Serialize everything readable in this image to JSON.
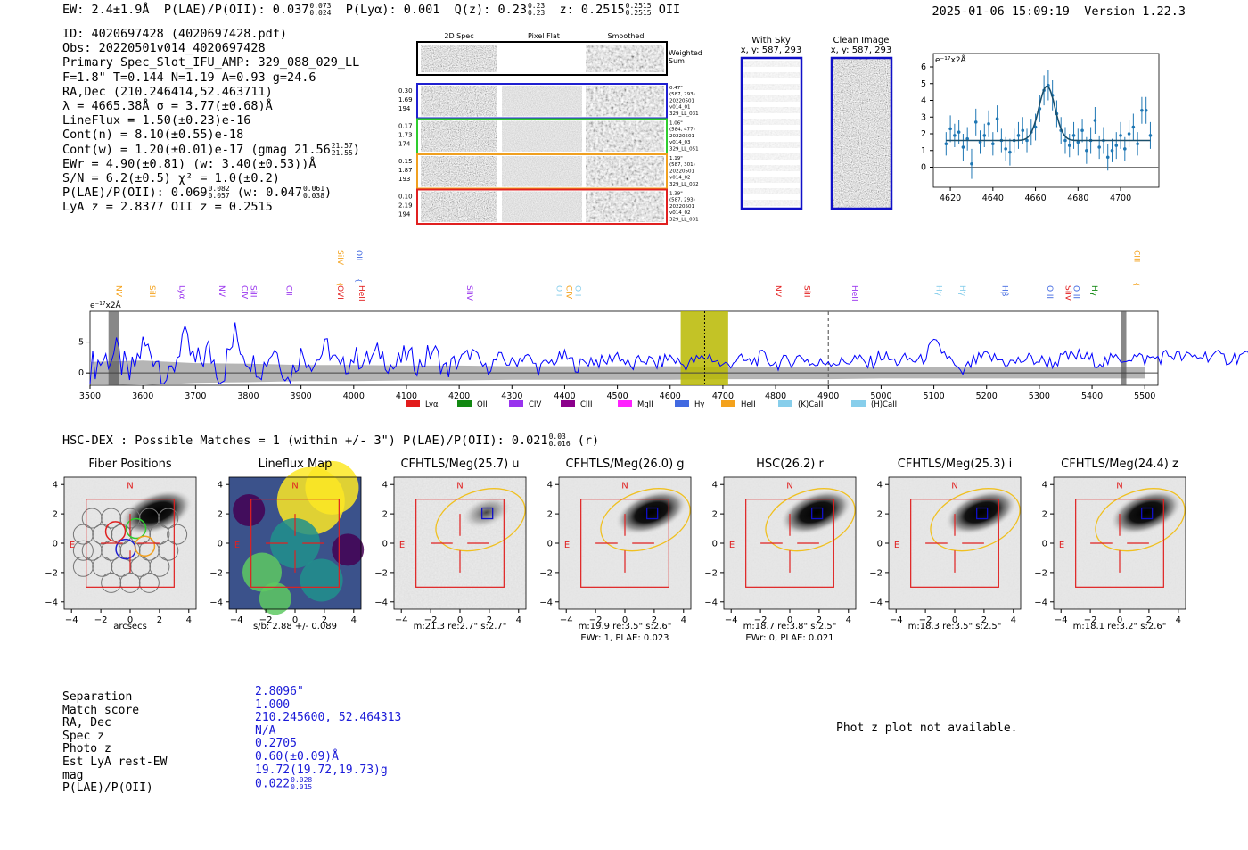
{
  "header": {
    "ew": "EW: 2.4±1.9Å",
    "plae_label": "P(LAE)/P(OII): 0.037",
    "plae_hi": "0.073",
    "plae_lo": "0.024",
    "plya": "P(Lyα): 0.001",
    "qz_label": "Q(z): 0.23",
    "qz_hi": "0.23",
    "qz_lo": "0.23",
    "z_label": "z: 0.2515",
    "z_hi": "0.2515",
    "z_lo": "0.2515",
    "z_line": "OII",
    "datetime": "2025-01-06 15:09:19",
    "version": "Version 1.22.3"
  },
  "details": {
    "id": "ID: 4020697428 (4020697428.pdf)",
    "obs": "Obs: 20220501v014_4020697428",
    "primary": "Primary Spec_Slot_IFU_AMP: 329_088_029_LL",
    "fiber": "F=1.8\"  T=0.144  N=1.19  A=0.93  g=24.6",
    "radec": "RA,Dec (210.246414,52.463711)",
    "lambda": "λ = 4665.38Å  σ = 3.77(±0.68)Å",
    "lineflux": "LineFlux = 1.50(±0.23)e-16",
    "contn": "Cont(n) = 8.10(±0.55)e-18",
    "contw": "Cont(w) = 1.20(±0.01)e-17 (gmag 21.56",
    "contw_hi": "21.57",
    "contw_lo": "21.55",
    "ewr": "EWr = 4.90(±0.81) (w: 3.40(±0.53))Å",
    "sn": "S/N = 6.2(±0.5)  χ² = 1.0(±0.2)",
    "plae": "P(LAE)/P(OII): 0.069",
    "plae_hi": "0.082",
    "plae_lo": "0.057",
    "plae_w": "(w: 0.047",
    "plae_w_hi": "0.061",
    "plae_w_lo": "0.038",
    "lya_oii": "LyA z = 2.8377  OII z = 0.2515"
  },
  "cutout_panel": {
    "col_2d": "2D Spec",
    "col_flat": "Pixel Flat",
    "col_smooth": "Smoothed",
    "weighted": "Weighted",
    "sum": "Sum",
    "rows": [
      {
        "left": [
          "0.30",
          "1.69",
          "194"
        ],
        "right": [
          "0.47\"",
          "(587, 293)",
          "20220501",
          "v014_01",
          "329_LL_031"
        ],
        "color": "#1f1fd0"
      },
      {
        "left": [
          "0.17",
          "1.73",
          "174"
        ],
        "right": [
          "1.06\"",
          "(584, 477)",
          "20220501",
          "v014_03",
          "329_LL_051"
        ],
        "color": "#2ecc2e"
      },
      {
        "left": [
          "0.15",
          "1.87",
          "193"
        ],
        "right": [
          "1.19\"",
          "(587, 301)",
          "20220501",
          "v014_02",
          "329_LL_032"
        ],
        "color": "#f0a020"
      },
      {
        "left": [
          "0.10",
          "2.19",
          "194"
        ],
        "right": [
          "1.39\"",
          "(587, 293)",
          "20220501",
          "v014_02",
          "329_LL_031"
        ],
        "color": "#e02020"
      }
    ]
  },
  "sky_panels": {
    "with_sky": "With Sky",
    "with_sky_xy": "x, y: 587, 293",
    "clean": "Clean Image",
    "clean_xy": "x, y: 587, 293"
  },
  "legend": [
    {
      "name": "Lyα",
      "color": "#e21b1b"
    },
    {
      "name": "OII",
      "color": "#118811"
    },
    {
      "name": "CIV",
      "color": "#9933ee"
    },
    {
      "name": "CIII",
      "color": "#8b008b"
    },
    {
      "name": "MgII",
      "color": "#ff22ff"
    },
    {
      "name": "Hγ",
      "color": "#4169e1"
    },
    {
      "name": "HeII",
      "color": "#f4a21c"
    },
    {
      "name": "(K)CaII",
      "color": "#87ceeb"
    },
    {
      "name": "(H)CaII",
      "color": "#87ceeb"
    }
  ],
  "line_markers": [
    {
      "label": "NV",
      "x": 3545,
      "row": 1,
      "color": "#f4a21c"
    },
    {
      "label": "SiII",
      "x": 3608,
      "row": 1,
      "color": "#f4a21c"
    },
    {
      "label": "Lyα",
      "x": 3665,
      "row": 1,
      "color": "#9933ee"
    },
    {
      "label": "NV",
      "x": 3740,
      "row": 1,
      "color": "#9933ee"
    },
    {
      "label": "CIV",
      "x": 3783,
      "row": 1,
      "color": "#9933ee"
    },
    {
      "label": "SiII",
      "x": 3800,
      "row": 1,
      "color": "#9933ee"
    },
    {
      "label": "CII",
      "x": 3868,
      "row": 1,
      "color": "#9933ee"
    },
    {
      "label": "SiIV",
      "x": 3965,
      "row": 0,
      "color": "#f4a21c"
    },
    {
      "label": "OII",
      "x": 4000,
      "row": 0,
      "color": "#4169e1"
    },
    {
      "label": "OVI",
      "x": 3965,
      "row": 1,
      "color": "#e21b1b"
    },
    {
      "label": "HeII",
      "x": 4005,
      "row": 1,
      "color": "#e21b1b"
    },
    {
      "label": "SiIV",
      "x": 4210,
      "row": 1,
      "color": "#9933ee"
    },
    {
      "label": "OII",
      "x": 4380,
      "row": 1,
      "color": "#87ceeb"
    },
    {
      "label": "CIV",
      "x": 4398,
      "row": 1,
      "color": "#f4a21c"
    },
    {
      "label": "OII",
      "x": 4415,
      "row": 1,
      "color": "#87ceeb"
    },
    {
      "label": "NV",
      "x": 4795,
      "row": 1,
      "color": "#e21b1b"
    },
    {
      "label": "SiII",
      "x": 4850,
      "row": 1,
      "color": "#e21b1b"
    },
    {
      "label": "HeII",
      "x": 4940,
      "row": 1,
      "color": "#9933ee"
    },
    {
      "label": "Hγ",
      "x": 5100,
      "row": 1,
      "color": "#87ceeb"
    },
    {
      "label": "Hγ",
      "x": 5145,
      "row": 1,
      "color": "#87ceeb"
    },
    {
      "label": "Hβ",
      "x": 5225,
      "row": 1,
      "color": "#4169e1"
    },
    {
      "label": "OIII",
      "x": 5310,
      "row": 1,
      "color": "#4169e1"
    },
    {
      "label": "SiIV",
      "x": 5345,
      "row": 1,
      "color": "#e21b1b"
    },
    {
      "label": "OIII",
      "x": 5360,
      "row": 1,
      "color": "#4169e1"
    },
    {
      "label": "Hγ",
      "x": 5395,
      "row": 1,
      "color": "#118811"
    },
    {
      "label": "CIII",
      "x": 5475,
      "row": 0,
      "color": "#f4a21c"
    }
  ],
  "hsc": {
    "text": "HSC-DEX : Possible Matches = 1 (within +/- 3\")  P(LAE)/P(OII): 0.021",
    "hi": "0.03",
    "lo": "0.016",
    "band": "(r)"
  },
  "thumbs": [
    {
      "title": "Fiber Positions",
      "foot1": "arcsecs",
      "foot2": "",
      "n": "N",
      "e": "E"
    },
    {
      "title": "Lineflux Map",
      "foot1": "s/b: 2.88 +/- 0.089",
      "foot2": "",
      "n": "N",
      "e": "E"
    },
    {
      "title": "CFHTLS/Meg(25.7) u",
      "foot1": "m:21.3  re:2.7\"  s:2.7\"",
      "foot2": "",
      "n": "N",
      "e": "E"
    },
    {
      "title": "CFHTLS/Meg(26.0) g",
      "foot1": "m:19.9  re:3.5\"  s:2.6\"",
      "foot2": "EWr: 1, PLAE: 0.023",
      "n": "N",
      "e": "E"
    },
    {
      "title": "HSC(26.2) r",
      "foot1": "m:18.7  re:3.8\"  s:2.5\"",
      "foot2": "EWr: 0, PLAE: 0.021",
      "n": "N",
      "e": "E"
    },
    {
      "title": "CFHTLS/Meg(25.3) i",
      "foot1": "m:18.3  re:3.5\"  s:2.5\"",
      "foot2": "",
      "n": "N",
      "e": "E"
    },
    {
      "title": "CFHTLS/Meg(24.4) z",
      "foot1": "m:18.1  re:3.2\"  s:2.6\"",
      "foot2": "",
      "n": "N",
      "e": "E"
    }
  ],
  "match": {
    "keys": [
      "Separation",
      "Match score",
      "RA, Dec",
      "Spec z",
      "Photo z",
      "Est LyA rest-EW",
      "mag",
      "P(LAE)/P(OII)"
    ],
    "values": [
      "2.8096\"",
      "1.000",
      "210.245600, 52.464313",
      "N/A",
      "0.2705",
      "0.60(±0.09)Å",
      "19.72(19.72,19.73)g",
      "0.022"
    ],
    "plae_hi": "0.028",
    "plae_lo": "0.015"
  },
  "photz_note": "Phot z plot not available.",
  "chart_data": [
    {
      "type": "scatter",
      "title": "line fit",
      "ylabel": "e⁻¹⁷x2Å",
      "xlim": [
        4612,
        4718
      ],
      "ylim": [
        -1.2,
        6.8
      ],
      "xticks": [
        4620,
        4640,
        4660,
        4680,
        4700
      ],
      "yticks": [
        0,
        1,
        2,
        3,
        4,
        5,
        6
      ],
      "x": [
        4618,
        4620,
        4622,
        4624,
        4626,
        4628,
        4630,
        4632,
        4634,
        4636,
        4638,
        4640,
        4642,
        4644,
        4646,
        4648,
        4650,
        4652,
        4654,
        4656,
        4658,
        4660,
        4662,
        4664,
        4666,
        4668,
        4670,
        4672,
        4674,
        4676,
        4678,
        4680,
        4682,
        4684,
        4686,
        4688,
        4690,
        4692,
        4694,
        4696,
        4698,
        4700,
        4702,
        4704,
        4706,
        4708,
        4710,
        4712,
        4714
      ],
      "y": [
        1.4,
        2.3,
        1.9,
        2.1,
        1.2,
        1.7,
        0.2,
        2.7,
        1.5,
        1.9,
        2.6,
        1.4,
        2.9,
        1.6,
        1.1,
        0.9,
        1.6,
        1.9,
        2.2,
        1.6,
        2.1,
        2.4,
        3.5,
        4.6,
        4.9,
        4.3,
        3.2,
        2.2,
        1.6,
        1.3,
        1.9,
        1.5,
        2.2,
        1.0,
        1.6,
        2.8,
        1.2,
        1.6,
        0.6,
        1.0,
        1.3,
        1.9,
        1.1,
        2.0,
        2.4,
        1.4,
        3.4,
        3.4,
        1.9
      ],
      "err": [
        0.7,
        0.8,
        0.7,
        0.7,
        0.8,
        0.7,
        0.9,
        0.8,
        0.7,
        0.7,
        0.8,
        0.7,
        0.8,
        0.7,
        0.7,
        0.8,
        0.7,
        0.8,
        0.8,
        0.7,
        0.8,
        0.8,
        0.8,
        0.9,
        0.9,
        0.9,
        0.8,
        0.8,
        0.8,
        0.7,
        0.8,
        0.8,
        0.7,
        0.8,
        0.8,
        0.8,
        0.7,
        0.8,
        0.8,
        0.7,
        0.8,
        0.8,
        0.7,
        0.8,
        0.8,
        0.7,
        0.8,
        0.8,
        0.8
      ],
      "fit": {
        "continuum": 1.6,
        "amplitude": 3.25,
        "center": 4665.4,
        "sigma": 3.77,
        "x_range": [
          4618,
          4714
        ]
      }
    },
    {
      "type": "line",
      "title": "full spectrum",
      "ylabel": "e⁻¹⁷x2Å",
      "xlim": [
        3500,
        5525
      ],
      "ylim": [
        -2,
        10
      ],
      "xticks": [
        3500,
        3600,
        3700,
        3800,
        3900,
        4000,
        4100,
        4200,
        4300,
        4400,
        4500,
        4600,
        4700,
        4800,
        4900,
        5000,
        5100,
        5200,
        5300,
        5400,
        5500
      ],
      "yticks": [
        0,
        5
      ],
      "highlight_band": [
        4620,
        4710
      ],
      "line_center": 4665.4,
      "dashed_marker": 4900,
      "masked_regions": [
        [
          3535,
          3555
        ],
        [
          5455,
          5465
        ]
      ],
      "series": [
        {
          "name": "spectrum",
          "color": "#0000ff",
          "x_start": 3500,
          "x_step": 25,
          "values": [
            1.0,
            2.2,
            3.1,
            -0.8,
            4.4,
            2.8,
            -1.6,
            5.9,
            1.2,
            3.6,
            -0.4,
            6.1,
            2.3,
            0.6,
            4.2,
            -1.1,
            3.1,
            1.6,
            4.3,
            0.4,
            2.6,
            1.9,
            3.4,
            0.8,
            2.9,
            1.2,
            3.8,
            0.4,
            2.1,
            3.3,
            0.6,
            2.4,
            1.5,
            2.9,
            0.7,
            1.8,
            2.6,
            1.1,
            2.2,
            1.6,
            3.1,
            0.8,
            2.3,
            1.4,
            2.6,
            1.3,
            2.0,
            2.8,
            1.0,
            2.2,
            1.7,
            2.6,
            1.5,
            1.9,
            2.7,
            1.2,
            2.1,
            1.6,
            2.4,
            1.3,
            2.9,
            1.8,
            2.2,
            1.9,
            4.7,
            2.8,
            -0.4,
            1.8,
            2.6,
            2.1,
            1.6,
            2.3,
            2.0,
            1.7,
            2.5,
            2.8,
            2.1,
            1.8,
            2.3,
            2.7,
            2.2,
            2.5,
            3.0,
            2.4,
            2.7,
            2.9,
            2.3,
            2.6,
            3.1,
            2.5
          ]
        },
        {
          "name": "noise",
          "color": "#b5b5b5",
          "x_start": 3500,
          "x_step": 100,
          "values": [
            1.8,
            2.0,
            1.6,
            1.5,
            1.3,
            1.3,
            1.2,
            1.2,
            1.1,
            1.1,
            1.1,
            1.1,
            1.0,
            1.0,
            1.0,
            0.9,
            0.9,
            0.9,
            0.9,
            0.9,
            0.9
          ]
        }
      ]
    },
    {
      "type": "scatter",
      "title": "cutout axes",
      "xlim": [
        -4.5,
        4.5
      ],
      "ylim": [
        -4.5,
        4.5
      ],
      "xticks": [
        -4,
        -2,
        0,
        2,
        4
      ],
      "yticks": [
        -4,
        -2,
        0,
        2,
        4
      ]
    }
  ]
}
